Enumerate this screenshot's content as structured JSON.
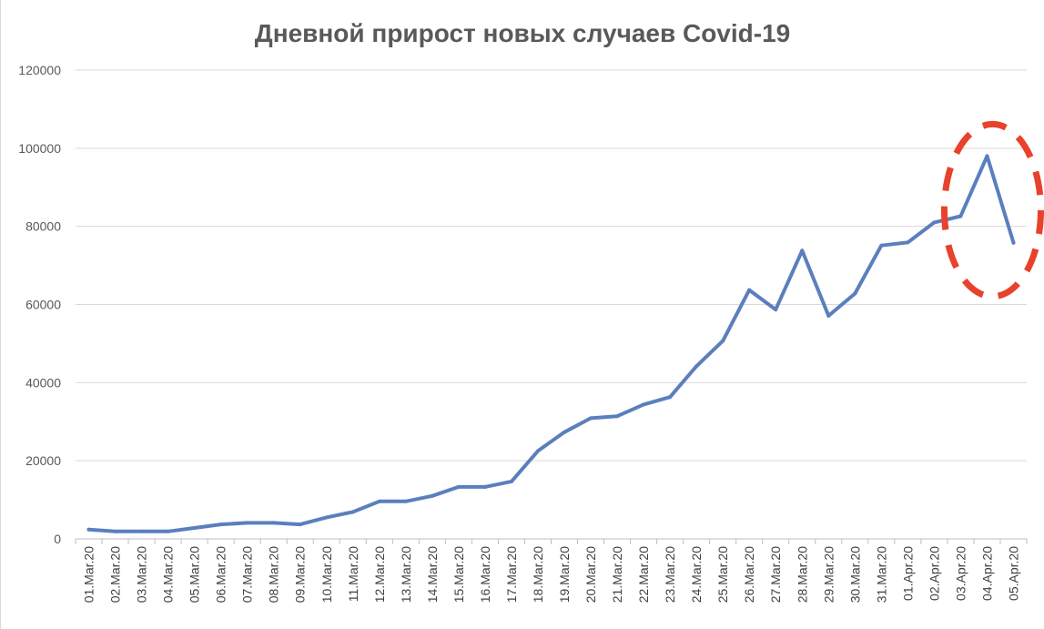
{
  "chart_data": {
    "type": "line",
    "title": "Дневной прирост новых случаев Covid-19",
    "xlabel": "",
    "ylabel": "",
    "ylim": [
      0,
      120000
    ],
    "yticks": [
      0,
      20000,
      40000,
      60000,
      80000,
      100000,
      120000
    ],
    "ytick_labels": [
      "0",
      "20000",
      "40000",
      "60000",
      "80000",
      "100000",
      "120000"
    ],
    "grid": true,
    "legend": "none",
    "line_color": "#5b7fbd",
    "highlight_color": "#e8412c",
    "categories": [
      "01.Mar.20",
      "02.Mar.20",
      "03.Mar.20",
      "04.Mar.20",
      "05.Mar.20",
      "06.Mar.20",
      "07.Mar.20",
      "08.Mar.20",
      "09.Mar.20",
      "10.Mar.20",
      "11.Mar.20",
      "12.Mar.20",
      "13.Mar.20",
      "14.Mar.20",
      "15.Mar.20",
      "16.Mar.20",
      "17.Mar.20",
      "18.Mar.20",
      "19.Mar.20",
      "20.Mar.20",
      "21.Mar.20",
      "22.Mar.20",
      "23.Mar.20",
      "24.Mar.20",
      "25.Mar.20",
      "26.Mar.20",
      "27.Mar.20",
      "28.Mar.20",
      "29.Mar.20",
      "30.Mar.20",
      "31.Mar.20",
      "01.Apr.20",
      "02.Apr.20",
      "03.Apr.20",
      "04.Apr.20",
      "05.Apr.20"
    ],
    "series": [
      {
        "values": [
          2400,
          1900,
          1900,
          1900,
          2800,
          3700,
          4100,
          4100,
          3700,
          5500,
          6900,
          9600,
          9600,
          11000,
          13300,
          13300,
          14700,
          22500,
          27300,
          30900,
          31400,
          34400,
          36300,
          44200,
          50700,
          63700,
          58700,
          73800,
          57100,
          62800,
          75100,
          75900,
          81000,
          82600,
          98000,
          75800
        ]
      }
    ],
    "annotations": [
      {
        "type": "dashed-ellipse",
        "around_categories": [
          "03.Apr.20",
          "04.Apr.20",
          "05.Apr.20"
        ],
        "color": "#e8412c"
      }
    ]
  }
}
